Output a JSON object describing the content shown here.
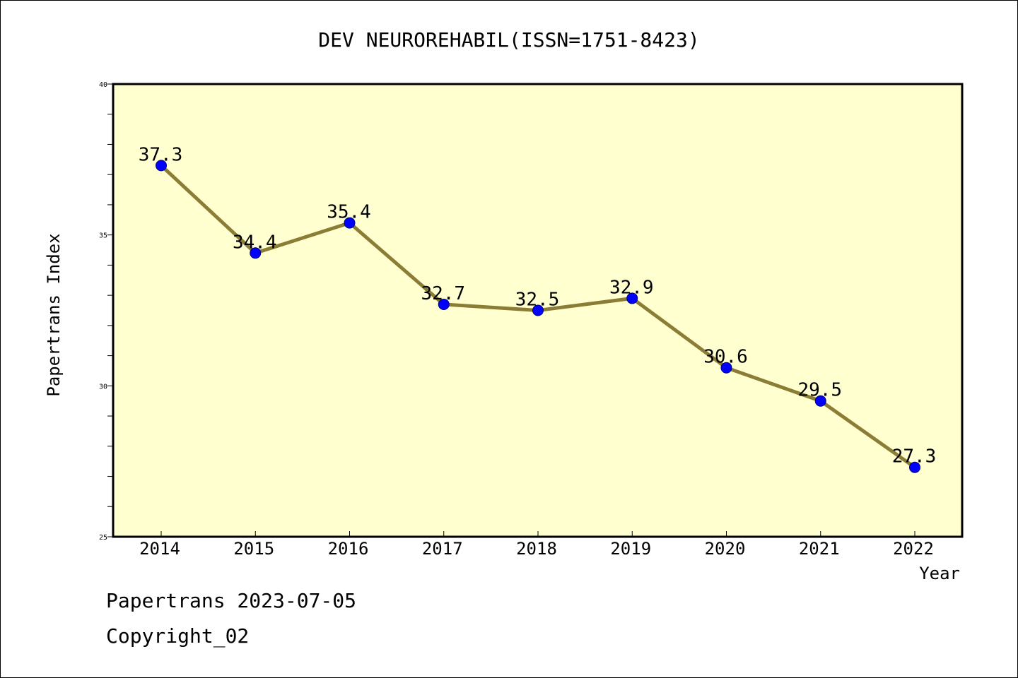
{
  "chart_data": {
    "type": "line",
    "title": "DEV NEUROREHABIL(ISSN=1751-8423)",
    "xlabel": "Year",
    "ylabel": "Papertrans Index",
    "categories": [
      "2014",
      "2015",
      "2016",
      "2017",
      "2018",
      "2019",
      "2020",
      "2021",
      "2022"
    ],
    "series": [
      {
        "values": [
          37.3,
          34.4,
          35.4,
          32.7,
          32.5,
          32.9,
          30.6,
          29.5,
          27.3
        ],
        "data_labels": [
          "37.3",
          "34.4",
          "35.4",
          "32.7",
          "32.5",
          "32.9",
          "30.6",
          "29.5",
          "27.3"
        ]
      }
    ],
    "ylim": [
      25,
      40
    ],
    "yticks": [
      25,
      30,
      35,
      40
    ],
    "ytick_labels": [
      "25",
      "30",
      "35",
      "40"
    ],
    "y_minor_step": 1,
    "grid": false,
    "colors": {
      "plot_background": "#FFFFD0",
      "line": "#8B7D35",
      "marker": "#0000FF",
      "axis": "#000000"
    }
  },
  "footer": {
    "stamp": "Papertrans 2023-07-05",
    "copyright": "Copyright_02"
  }
}
